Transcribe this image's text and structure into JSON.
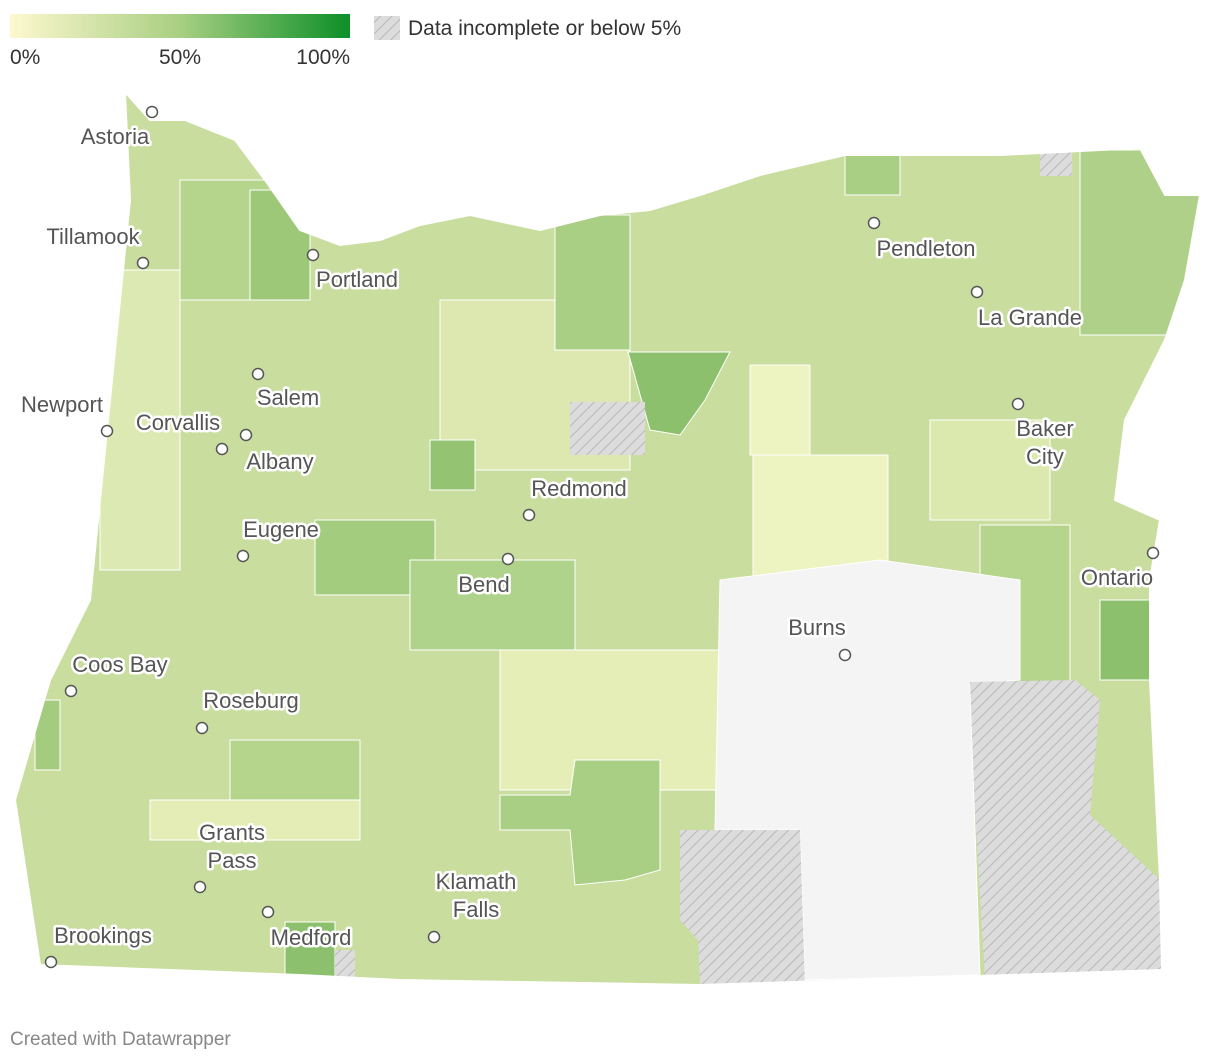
{
  "legend": {
    "ticks": [
      {
        "value": 0,
        "label": "0%"
      },
      {
        "value": 50,
        "label": "50%"
      },
      {
        "value": 100,
        "label": "100%"
      }
    ],
    "range": [
      0,
      100
    ],
    "colors": [
      "#fdf8cf",
      "#a8cf82",
      "#0c8f28"
    ],
    "no_data_label": "Data incomplete or below 5%"
  },
  "cities": [
    {
      "label": [
        "Astoria"
      ]
    },
    {
      "label": [
        "Tillamook"
      ]
    },
    {
      "label": [
        "Portland"
      ]
    },
    {
      "label": [
        "Newport"
      ]
    },
    {
      "label": [
        "Corvallis"
      ]
    },
    {
      "label": [
        "Salem"
      ]
    },
    {
      "label": [
        "Albany"
      ]
    },
    {
      "label": [
        "Eugene"
      ]
    },
    {
      "label": [
        "Redmond"
      ]
    },
    {
      "label": [
        "Bend"
      ]
    },
    {
      "label": [
        "Pendleton"
      ]
    },
    {
      "label": [
        "La Grande"
      ]
    },
    {
      "label": [
        "Baker",
        "City"
      ]
    },
    {
      "label": [
        "Ontario"
      ]
    },
    {
      "label": [
        "Burns"
      ]
    },
    {
      "label": [
        "Coos Bay"
      ]
    },
    {
      "label": [
        "Roseburg"
      ]
    },
    {
      "label": [
        "Grants",
        "Pass"
      ]
    },
    {
      "label": [
        "Klamath",
        "Falls"
      ]
    },
    {
      "label": [
        "Brookings"
      ]
    },
    {
      "label": [
        "Medford"
      ]
    }
  ],
  "footer": "Created with Datawrapper"
}
